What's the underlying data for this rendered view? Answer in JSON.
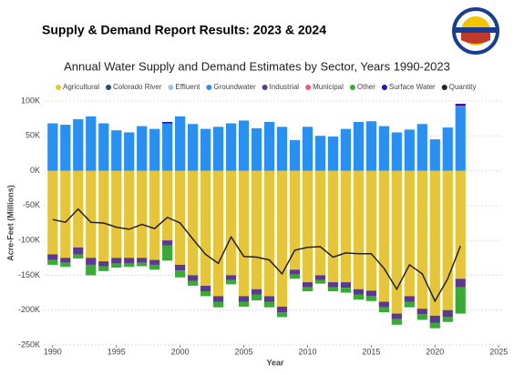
{
  "header": {
    "title": "Supply & Demand Report Results: 2023 & 2024"
  },
  "chart_data": {
    "type": "bar",
    "stacked": true,
    "title": "Annual Water Supply and Demand Estimates by Sector, Years 1990-2023",
    "x_label": "Year",
    "y_label": "Acre-Feet (Millions)",
    "x": [
      1990,
      1991,
      1992,
      1993,
      1994,
      1995,
      1996,
      1997,
      1998,
      1999,
      2000,
      2001,
      2002,
      2003,
      2004,
      2005,
      2006,
      2007,
      2008,
      2009,
      2010,
      2011,
      2012,
      2013,
      2014,
      2015,
      2016,
      2017,
      2018,
      2019,
      2020,
      2021,
      2022
    ],
    "xlim": [
      1989.3,
      2025.2
    ],
    "xticks": [
      1990,
      1995,
      2000,
      2005,
      2010,
      2015,
      2020,
      2025
    ],
    "ylim": [
      -250000,
      100000
    ],
    "yticks": [
      {
        "value": 100000,
        "label": "100K"
      },
      {
        "value": 50000,
        "label": "50K"
      },
      {
        "value": 0,
        "label": "0K"
      },
      {
        "value": -50000,
        "label": "-50K"
      },
      {
        "value": -100000,
        "label": "-100K"
      },
      {
        "value": -150000,
        "label": "-150K"
      },
      {
        "value": -200000,
        "label": "-200K"
      },
      {
        "value": -250000,
        "label": "-250K"
      }
    ],
    "grid": true,
    "legend": "top",
    "series": [
      {
        "name": "Agricultural",
        "color": "#e5c53c",
        "values": [
          -120000,
          -125000,
          -110000,
          -125000,
          -130000,
          -125000,
          -125000,
          -125000,
          -128000,
          -100000,
          -135000,
          -150000,
          -165000,
          -180000,
          -150000,
          -180000,
          -170000,
          -180000,
          -195000,
          -142000,
          -160000,
          -150000,
          -160000,
          -160000,
          -170000,
          -172000,
          -188000,
          -205000,
          -180000,
          -198000,
          -208000,
          -200000,
          -155000
        ]
      },
      {
        "name": "Colorado River",
        "color": "#1f4e79",
        "values": [
          0,
          0,
          0,
          0,
          0,
          0,
          0,
          0,
          0,
          0,
          0,
          0,
          0,
          0,
          0,
          0,
          0,
          0,
          0,
          0,
          0,
          0,
          0,
          0,
          0,
          0,
          0,
          0,
          0,
          0,
          0,
          0,
          0
        ]
      },
      {
        "name": "Effluent",
        "color": "#9dc3e6",
        "values": [
          0,
          0,
          0,
          0,
          0,
          0,
          0,
          0,
          0,
          0,
          0,
          0,
          0,
          0,
          0,
          0,
          0,
          0,
          0,
          0,
          0,
          0,
          0,
          0,
          0,
          0,
          0,
          0,
          0,
          0,
          0,
          0,
          0
        ]
      },
      {
        "name": "Groundwater",
        "color": "#2b8ff0",
        "values": [
          68000,
          66000,
          74000,
          78000,
          68000,
          58000,
          55000,
          64000,
          60000,
          68000,
          78000,
          67000,
          60000,
          63000,
          68000,
          72000,
          61000,
          70000,
          63000,
          44000,
          63000,
          50000,
          49000,
          60000,
          70000,
          71000,
          64000,
          55000,
          59000,
          67000,
          45000,
          62000,
          92000
        ]
      },
      {
        "name": "Industrial",
        "color": "#5b3a8c",
        "values": [
          -8000,
          -7000,
          -10000,
          -10000,
          -7000,
          -8000,
          -8000,
          -7000,
          -7000,
          -7000,
          -8000,
          -8000,
          -8000,
          -8000,
          -7000,
          -8000,
          -8000,
          -8000,
          -8000,
          -7000,
          -7000,
          -7000,
          -7000,
          -8000,
          -8000,
          -8000,
          -8000,
          -8000,
          -8000,
          -8000,
          -10000,
          -10000,
          -12000
        ]
      },
      {
        "name": "Municipal",
        "color": "#e0607e",
        "values": [
          0,
          0,
          0,
          0,
          0,
          0,
          0,
          0,
          0,
          0,
          0,
          0,
          0,
          0,
          0,
          0,
          0,
          0,
          0,
          0,
          0,
          0,
          0,
          0,
          0,
          0,
          0,
          0,
          0,
          0,
          0,
          0,
          1000
        ]
      },
      {
        "name": "Other",
        "color": "#3aa935",
        "values": [
          -7000,
          -6000,
          -6000,
          -15000,
          -7000,
          -6000,
          -5000,
          -5000,
          -7000,
          -22000,
          -10000,
          -7000,
          -7000,
          -8000,
          -6000,
          -7000,
          -8000,
          -8000,
          -7000,
          -6000,
          -6000,
          -5000,
          -6000,
          -7000,
          -7000,
          -7000,
          -7000,
          -8000,
          -8000,
          -8000,
          -8000,
          -7000,
          -38000
        ]
      },
      {
        "name": "Surface Water",
        "color": "#1414c8",
        "values": [
          0,
          0,
          0,
          0,
          0,
          0,
          0,
          0,
          0,
          2000,
          0,
          0,
          0,
          0,
          0,
          0,
          0,
          0,
          0,
          0,
          0,
          0,
          0,
          0,
          0,
          0,
          0,
          0,
          0,
          0,
          0,
          0,
          3000
        ]
      }
    ],
    "line_series": {
      "name": "Quantity",
      "color": "#222222",
      "values": [
        -70000,
        -74000,
        -55000,
        -74000,
        -75000,
        -81000,
        -84000,
        -77000,
        -83000,
        -67000,
        -75000,
        -98000,
        -120000,
        -133000,
        -95000,
        -123000,
        -124000,
        -128000,
        -148000,
        -114000,
        -110000,
        -109000,
        -124000,
        -118000,
        -119000,
        -119000,
        -140000,
        -170000,
        -135000,
        -148000,
        -187000,
        -155000,
        -108000
      ]
    }
  }
}
